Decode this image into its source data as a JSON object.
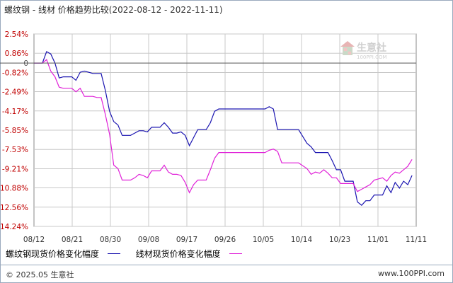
{
  "title": {
    "main": "螺纹钢 - 线材 价格趋势比较",
    "range": "(2022-08-12 - 2022-11-11)"
  },
  "watermark": {
    "name": "生意社",
    "site": "100PPI.COM"
  },
  "footer": {
    "copyright": "© 2025.05 生意社",
    "site": "www.100PPI.com"
  },
  "colors": {
    "series1": "#1a14b0",
    "series2": "#e020d8",
    "grid": "#c8c8c8",
    "axis": "#333333",
    "zero": "#555555"
  },
  "chart_data": {
    "type": "line",
    "ylabel_unit": "%",
    "yticks": [
      "2.54%",
      "0.86%",
      "0",
      "-0.82%",
      "-2.49%",
      "-4.17%",
      "-5.85%",
      "-7.53%",
      "-9.21%",
      "-10.88%",
      "-12.56%",
      "-14.24%"
    ],
    "ytick_values": [
      2.54,
      0.86,
      0,
      -0.82,
      -2.49,
      -4.17,
      -5.85,
      -7.53,
      -9.21,
      -10.88,
      -12.56,
      -14.24
    ],
    "ylim": [
      -14.24,
      2.54
    ],
    "xticks": [
      "08/12",
      "08/21",
      "08/30",
      "09/08",
      "09/17",
      "09/26",
      "10/05",
      "10/14",
      "10/23",
      "11/01",
      "11/11"
    ],
    "xlim": [
      0,
      91
    ],
    "series": [
      {
        "name": "螺纹钢现货价格变化幅度",
        "color": "#1a14b0",
        "points": [
          [
            0,
            0
          ],
          [
            2,
            0
          ],
          [
            3,
            1.0
          ],
          [
            4,
            0.8
          ],
          [
            5,
            0
          ],
          [
            6,
            -1.3
          ],
          [
            7,
            -1.2
          ],
          [
            9,
            -1.2
          ],
          [
            10,
            -1.5
          ],
          [
            11,
            -0.8
          ],
          [
            12,
            -0.7
          ],
          [
            13,
            -0.8
          ],
          [
            14,
            -0.9
          ],
          [
            15,
            -0.9
          ],
          [
            16,
            -0.9
          ],
          [
            17,
            -2.4
          ],
          [
            18,
            -4.2
          ],
          [
            19,
            -5.1
          ],
          [
            20,
            -5.4
          ],
          [
            21,
            -6.3
          ],
          [
            23,
            -6.3
          ],
          [
            24,
            -6.1
          ],
          [
            25,
            -5.9
          ],
          [
            26,
            -5.9
          ],
          [
            27,
            -6.0
          ],
          [
            28,
            -5.6
          ],
          [
            30,
            -5.6
          ],
          [
            31,
            -5.2
          ],
          [
            32,
            -5.6
          ],
          [
            33,
            -6.1
          ],
          [
            34,
            -6.1
          ],
          [
            35,
            -6.0
          ],
          [
            36,
            -6.3
          ],
          [
            37,
            -7.2
          ],
          [
            38,
            -6.5
          ],
          [
            39,
            -5.8
          ],
          [
            41,
            -5.8
          ],
          [
            42,
            -5.2
          ],
          [
            43,
            -4.2
          ],
          [
            44,
            -4.0
          ],
          [
            55,
            -4.0
          ],
          [
            56,
            -3.8
          ],
          [
            57,
            -4.0
          ],
          [
            58,
            -5.8
          ],
          [
            63,
            -5.8
          ],
          [
            65,
            -7.0
          ],
          [
            66,
            -7.3
          ],
          [
            67,
            -7.8
          ],
          [
            70,
            -7.8
          ],
          [
            71,
            -8.5
          ],
          [
            72,
            -9.3
          ],
          [
            73,
            -9.3
          ],
          [
            74,
            -10.3
          ],
          [
            76,
            -10.3
          ],
          [
            77,
            -12.1
          ],
          [
            78,
            -12.4
          ],
          [
            79,
            -12.0
          ],
          [
            80,
            -12.0
          ],
          [
            81,
            -11.5
          ],
          [
            83,
            -11.5
          ],
          [
            84,
            -10.7
          ],
          [
            85,
            -11.3
          ],
          [
            86,
            -10.4
          ],
          [
            87,
            -10.9
          ],
          [
            88,
            -10.3
          ],
          [
            89,
            -10.6
          ],
          [
            90,
            -9.8
          ]
        ]
      },
      {
        "name": "线材现货价格变化幅度",
        "color": "#e020d8",
        "points": [
          [
            0,
            0
          ],
          [
            2,
            0
          ],
          [
            3,
            0.3
          ],
          [
            4,
            -0.7
          ],
          [
            5,
            -1.2
          ],
          [
            6,
            -2.1
          ],
          [
            7,
            -2.2
          ],
          [
            9,
            -2.2
          ],
          [
            10,
            -2.5
          ],
          [
            11,
            -2.2
          ],
          [
            12,
            -2.9
          ],
          [
            14,
            -2.9
          ],
          [
            15,
            -3.0
          ],
          [
            16,
            -3.0
          ],
          [
            17,
            -4.5
          ],
          [
            18,
            -6.2
          ],
          [
            19,
            -8.9
          ],
          [
            20,
            -9.2
          ],
          [
            21,
            -10.2
          ],
          [
            23,
            -10.2
          ],
          [
            24,
            -10.0
          ],
          [
            25,
            -9.7
          ],
          [
            26,
            -9.8
          ],
          [
            27,
            -10.0
          ],
          [
            28,
            -9.4
          ],
          [
            30,
            -9.4
          ],
          [
            31,
            -8.9
          ],
          [
            32,
            -9.5
          ],
          [
            33,
            -9.7
          ],
          [
            34,
            -9.7
          ],
          [
            35,
            -9.8
          ],
          [
            36,
            -10.4
          ],
          [
            37,
            -11.3
          ],
          [
            38,
            -10.6
          ],
          [
            39,
            -10.2
          ],
          [
            41,
            -10.2
          ],
          [
            42,
            -9.3
          ],
          [
            43,
            -8.3
          ],
          [
            44,
            -7.8
          ],
          [
            55,
            -7.8
          ],
          [
            56,
            -7.6
          ],
          [
            57,
            -7.5
          ],
          [
            58,
            -7.7
          ],
          [
            59,
            -8.7
          ],
          [
            63,
            -8.7
          ],
          [
            65,
            -9.2
          ],
          [
            66,
            -9.7
          ],
          [
            67,
            -9.5
          ],
          [
            68,
            -9.6
          ],
          [
            69,
            -9.3
          ],
          [
            70,
            -9.6
          ],
          [
            71,
            -10.0
          ],
          [
            72,
            -10.0
          ],
          [
            73,
            -10.5
          ],
          [
            76,
            -10.5
          ],
          [
            77,
            -11.2
          ],
          [
            78,
            -11.0
          ],
          [
            79,
            -10.8
          ],
          [
            80,
            -10.6
          ],
          [
            81,
            -10.2
          ],
          [
            83,
            -10.0
          ],
          [
            84,
            -10.3
          ],
          [
            85,
            -9.8
          ],
          [
            86,
            -9.5
          ],
          [
            87,
            -9.6
          ],
          [
            88,
            -9.3
          ],
          [
            89,
            -9.0
          ],
          [
            90,
            -8.4
          ]
        ]
      }
    ],
    "grid": true,
    "legend_position": "bottom-left"
  }
}
